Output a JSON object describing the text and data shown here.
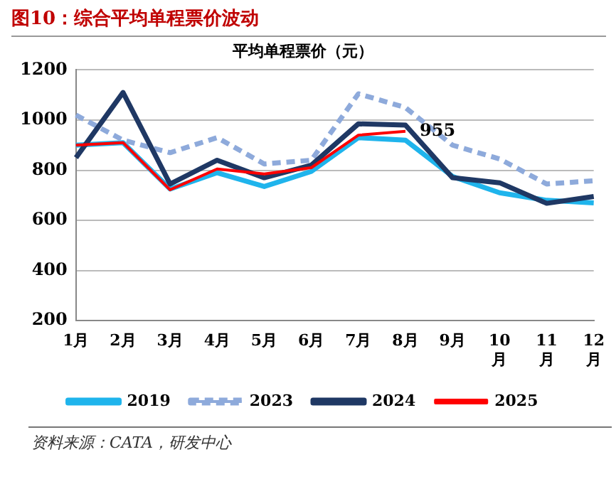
{
  "chart_data": {
    "type": "line",
    "title": "图10：综合平均单程票价波动",
    "subtitle": "平均单程票价（元）",
    "categories": [
      "1月",
      "2月",
      "3月",
      "4月",
      "5月",
      "6月",
      "7月",
      "8月",
      "9月",
      "10月",
      "11月",
      "12月"
    ],
    "series": [
      {
        "name": "2019",
        "color": "#1fb4ec",
        "values": [
          900,
          910,
          725,
          790,
          735,
          795,
          930,
          920,
          775,
          710,
          680,
          670
        ]
      },
      {
        "name": "2023",
        "color": "#8eaadb",
        "line_style": "dashed",
        "values": [
          1020,
          920,
          870,
          930,
          825,
          840,
          1105,
          1050,
          900,
          845,
          745,
          758
        ]
      },
      {
        "name": "2024",
        "color": "#1f3864",
        "values": [
          850,
          1110,
          745,
          840,
          770,
          820,
          985,
          980,
          770,
          750,
          668,
          695
        ]
      },
      {
        "name": "2025",
        "color": "#ff0000",
        "values": [
          900,
          910,
          722,
          805,
          785,
          810,
          940,
          955,
          null,
          null,
          null,
          null
        ]
      }
    ],
    "ylim": [
      200,
      1200
    ],
    "yticks": [
      200,
      400,
      600,
      800,
      1000,
      1200
    ],
    "grid": "y",
    "legend": "bottom",
    "marker": "none",
    "annotations": [
      {
        "text": "955",
        "x": "8月",
        "y": 955
      },
      "资料来源：CATA，研发中心"
    ]
  }
}
